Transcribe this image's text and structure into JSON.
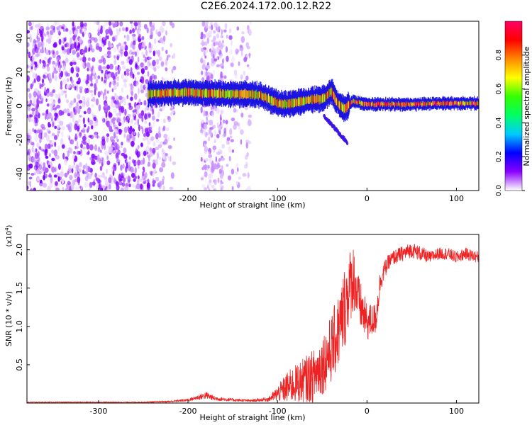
{
  "title": "C2E6.2024.172.00.12.R22",
  "chart_data": [
    {
      "type": "heatmap",
      "title": "C2E6.2024.172.00.12.R22",
      "xlabel": "Height of straight line (km)",
      "ylabel": "Frequency (Hz)",
      "xlim": [
        -380,
        125
      ],
      "ylim": [
        -50,
        50
      ],
      "x_ticks": [
        -300,
        -200,
        -100,
        0,
        100
      ],
      "y_ticks": [
        -40,
        -20,
        0,
        20,
        40
      ],
      "colorbar": {
        "label": "Normalized spectral amplitude",
        "range": [
          0,
          1
        ],
        "ticks": [
          0.0,
          0.2,
          0.4,
          0.6,
          0.8
        ],
        "colors": [
          "#ffffff",
          "#8a00ff",
          "#0000ff",
          "#00ccff",
          "#00ff66",
          "#33ff00",
          "#ffff00",
          "#ff8800",
          "#ff0000",
          "#ff0066"
        ]
      },
      "signal_trace": {
        "x": [
          -245,
          -230,
          -200,
          -180,
          -160,
          -140,
          -120,
          -110,
          -100,
          -90,
          -80,
          -70,
          -60,
          -50,
          -45,
          -40,
          -35,
          -30,
          -25,
          -20,
          -15,
          -10,
          0,
          20,
          40,
          60,
          80,
          100,
          125
        ],
        "y": [
          7,
          7.5,
          8,
          7.5,
          7,
          7,
          6.5,
          4,
          1.5,
          1,
          2,
          3,
          4,
          4,
          6,
          9,
          3,
          0,
          -2,
          1,
          3,
          2,
          1,
          1,
          1,
          1,
          1.5,
          1.5,
          1.5
        ]
      },
      "noise_regions": [
        {
          "x_range": [
            -380,
            -235
          ],
          "density": "high"
        },
        {
          "x_range": [
            -235,
            -215
          ],
          "density": "low"
        },
        {
          "x_range": [
            -185,
            -160
          ],
          "density": "medium"
        },
        {
          "x_range": [
            -160,
            -130
          ],
          "density": "low"
        }
      ],
      "grid": false
    },
    {
      "type": "line",
      "xlabel": "Height of straight line (km)",
      "ylabel": "SNR (10 * v/v)",
      "y_multiplier": "(x10^4)",
      "xlim": [
        -380,
        125
      ],
      "ylim": [
        0,
        2.2
      ],
      "x_ticks": [
        -300,
        -200,
        -100,
        0,
        100
      ],
      "y_ticks": [
        0.5,
        1.0,
        1.5,
        2.0
      ],
      "color": "#ee2222",
      "series": [
        {
          "x": [
            -380,
            -300,
            -250,
            -220,
            -200,
            -190,
            -180,
            -170,
            -150,
            -130,
            -110,
            -100,
            -90,
            -80,
            -70,
            -60,
            -50,
            -40,
            -30,
            -25,
            -20,
            -15,
            -10,
            0,
            10,
            15,
            20,
            25,
            30,
            40,
            50,
            60,
            70,
            80,
            90,
            100,
            110,
            125
          ],
          "values": [
            0.01,
            0.01,
            0.01,
            0.02,
            0.04,
            0.07,
            0.1,
            0.06,
            0.04,
            0.03,
            0.05,
            0.12,
            0.2,
            0.25,
            0.3,
            0.35,
            0.5,
            0.7,
            1.0,
            1.25,
            1.5,
            1.65,
            1.35,
            1.05,
            1.1,
            1.6,
            1.75,
            1.85,
            1.9,
            1.95,
            2.0,
            1.95,
            1.9,
            1.95,
            1.95,
            1.9,
            1.95,
            1.9
          ],
          "noise": [
            0.005,
            0.005,
            0.005,
            0.01,
            0.02,
            0.03,
            0.05,
            0.03,
            0.02,
            0.015,
            0.03,
            0.1,
            0.2,
            0.25,
            0.3,
            0.35,
            0.4,
            0.45,
            0.5,
            0.55,
            0.5,
            0.45,
            0.35,
            0.25,
            0.2,
            0.15,
            0.12,
            0.1,
            0.1,
            0.1,
            0.1,
            0.1,
            0.08,
            0.08,
            0.08,
            0.08,
            0.08,
            0.08
          ]
        }
      ],
      "grid": false
    }
  ]
}
